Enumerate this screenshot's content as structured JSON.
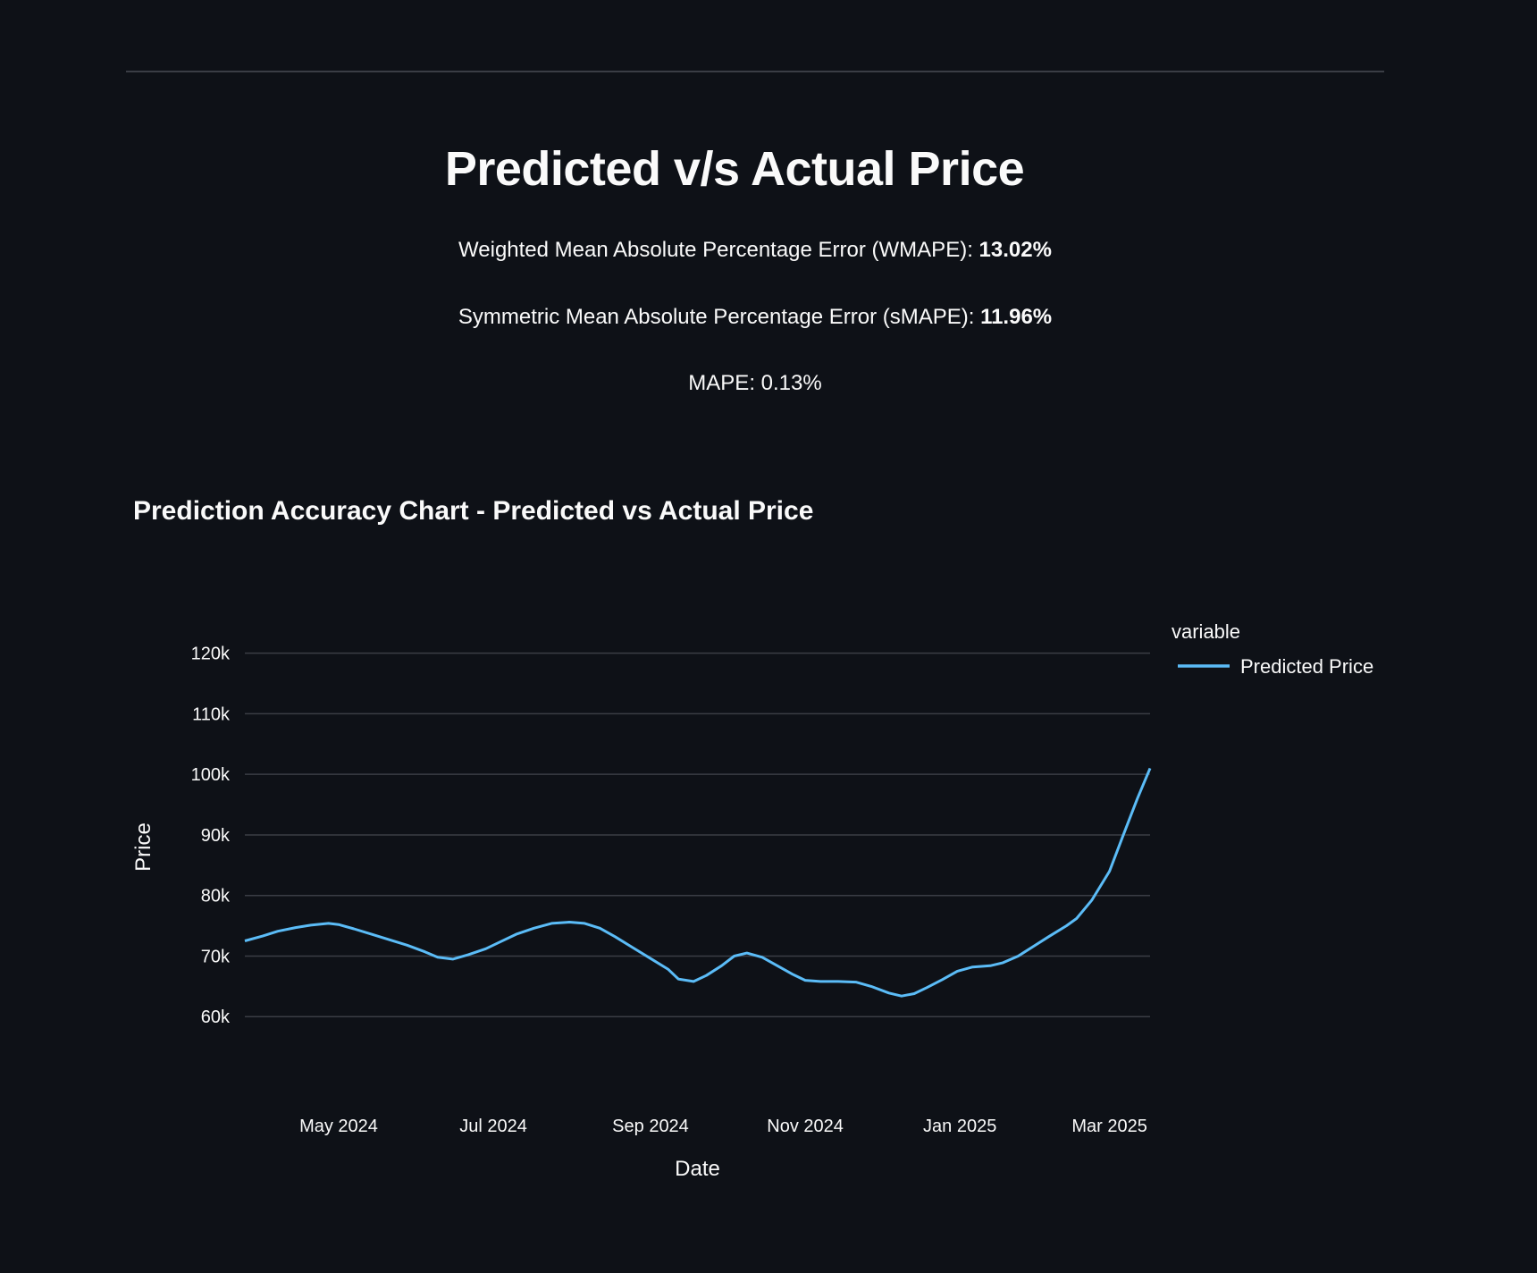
{
  "header": {
    "title": "Predicted v/s Actual Price",
    "wmape_label": "Weighted Mean Absolute Percentage Error (WMAPE): ",
    "wmape_value": "13.02%",
    "smape_label": "Symmetric Mean Absolute Percentage Error (sMAPE): ",
    "smape_value": "11.96%",
    "mape_text": "MAPE: 0.13%"
  },
  "colors": {
    "background": "#0e1117",
    "predicted": "#5bbcf7",
    "actual": "#2f7d1e",
    "grid": "#3a3d45"
  },
  "chart_data": {
    "type": "line",
    "title": "Prediction Accuracy Chart - Predicted vs Actual Price",
    "xlabel": "Date",
    "ylabel": "Price",
    "legend_title": "variable",
    "legend_position": "right",
    "grid": true,
    "xlim": [
      "2024-03-25",
      "2025-03-17"
    ],
    "ylim": [
      50000,
      126000
    ],
    "x_ticks": [
      {
        "date": "2024-05-01",
        "label": "May 2024"
      },
      {
        "date": "2024-07-01",
        "label": "Jul 2024"
      },
      {
        "date": "2024-09-01",
        "label": "Sep 2024"
      },
      {
        "date": "2024-11-01",
        "label": "Nov 2024"
      },
      {
        "date": "2025-01-01",
        "label": "Jan 2025"
      },
      {
        "date": "2025-03-01",
        "label": "Mar 2025"
      }
    ],
    "y_ticks": [
      {
        "value": 60000,
        "label": "60k"
      },
      {
        "value": 70000,
        "label": "70k"
      },
      {
        "value": 80000,
        "label": "80k"
      },
      {
        "value": 90000,
        "label": "90k"
      },
      {
        "value": 100000,
        "label": "100k"
      },
      {
        "value": 110000,
        "label": "110k"
      },
      {
        "value": 120000,
        "label": "120k"
      }
    ],
    "series": [
      {
        "name": "Predicted Price",
        "color": "#5bbcf7",
        "points": [
          [
            "2024-03-25",
            72500
          ],
          [
            "2024-04-01",
            73300
          ],
          [
            "2024-04-07",
            74100
          ],
          [
            "2024-04-14",
            74700
          ],
          [
            "2024-04-20",
            75100
          ],
          [
            "2024-04-27",
            75400
          ],
          [
            "2024-05-01",
            75200
          ],
          [
            "2024-05-07",
            74500
          ],
          [
            "2024-05-14",
            73600
          ],
          [
            "2024-05-21",
            72700
          ],
          [
            "2024-05-28",
            71800
          ],
          [
            "2024-06-04",
            70700
          ],
          [
            "2024-06-09",
            69800
          ],
          [
            "2024-06-15",
            69500
          ],
          [
            "2024-06-21",
            70200
          ],
          [
            "2024-06-28",
            71200
          ],
          [
            "2024-07-04",
            72400
          ],
          [
            "2024-07-10",
            73600
          ],
          [
            "2024-07-17",
            74600
          ],
          [
            "2024-07-24",
            75400
          ],
          [
            "2024-07-31",
            75600
          ],
          [
            "2024-08-06",
            75400
          ],
          [
            "2024-08-12",
            74600
          ],
          [
            "2024-08-18",
            73200
          ],
          [
            "2024-08-25",
            71400
          ],
          [
            "2024-09-01",
            69600
          ],
          [
            "2024-09-08",
            67800
          ],
          [
            "2024-09-12",
            66200
          ],
          [
            "2024-09-18",
            65800
          ],
          [
            "2024-09-23",
            66800
          ],
          [
            "2024-09-29",
            68400
          ],
          [
            "2024-10-04",
            70000
          ],
          [
            "2024-10-09",
            70500
          ],
          [
            "2024-10-15",
            69800
          ],
          [
            "2024-10-21",
            68400
          ],
          [
            "2024-10-27",
            67000
          ],
          [
            "2024-11-01",
            66000
          ],
          [
            "2024-11-07",
            65800
          ],
          [
            "2024-11-14",
            65800
          ],
          [
            "2024-11-21",
            65700
          ],
          [
            "2024-11-27",
            65000
          ],
          [
            "2024-12-04",
            63900
          ],
          [
            "2024-12-09",
            63400
          ],
          [
            "2024-12-14",
            63800
          ],
          [
            "2024-12-19",
            64800
          ],
          [
            "2024-12-25",
            66100
          ],
          [
            "2024-12-31",
            67500
          ],
          [
            "2025-01-06",
            68200
          ],
          [
            "2025-01-13",
            68400
          ],
          [
            "2025-01-18",
            68900
          ],
          [
            "2025-01-24",
            70000
          ],
          [
            "2025-01-30",
            71600
          ],
          [
            "2025-02-05",
            73200
          ],
          [
            "2025-02-12",
            75000
          ],
          [
            "2025-02-16",
            76200
          ],
          [
            "2025-02-22",
            79200
          ],
          [
            "2025-03-01",
            84000
          ],
          [
            "2025-03-06",
            89500
          ],
          [
            "2025-03-12",
            96000
          ],
          [
            "2025-03-17",
            101000
          ]
        ]
      }
    ]
  }
}
